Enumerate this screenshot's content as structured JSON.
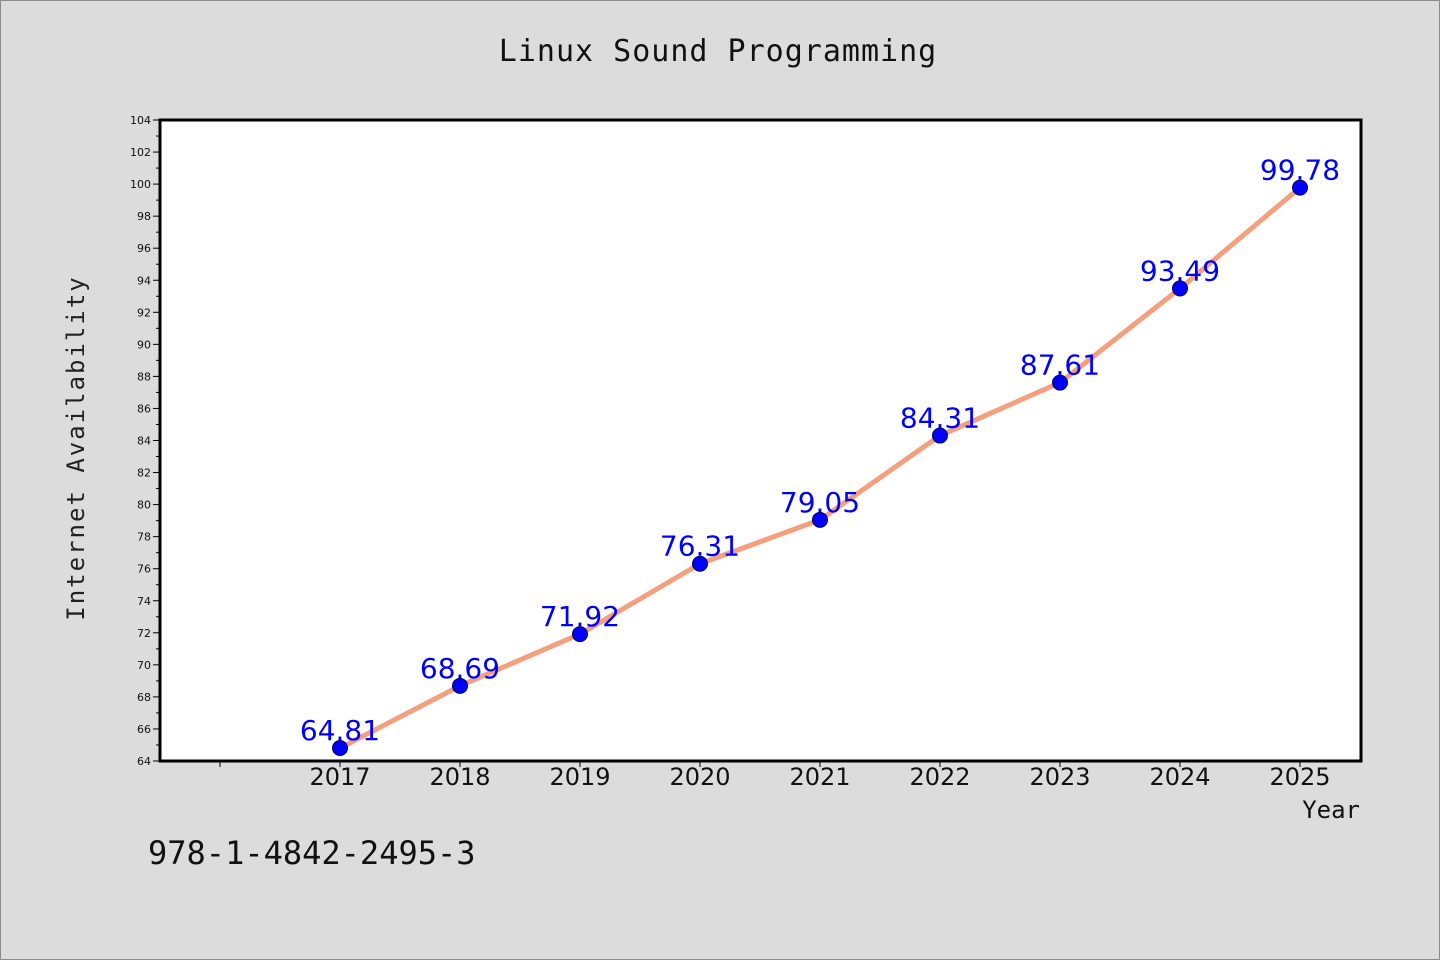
{
  "chart_data": {
    "type": "line",
    "title": "Linux Sound Programming",
    "xlabel": "Year",
    "ylabel": "Internet Availability",
    "categories": [
      "2017",
      "2018",
      "2019",
      "2020",
      "2021",
      "2022",
      "2023",
      "2024",
      "2025"
    ],
    "values": [
      64.81,
      68.69,
      71.92,
      76.31,
      79.05,
      84.31,
      87.61,
      93.49,
      99.78
    ],
    "data_labels": [
      "64.81",
      "68.69",
      "71.92",
      "76.31",
      "79.05",
      "84.31",
      "87.61",
      "93.49",
      "99.78"
    ],
    "ylim": [
      64,
      104
    ],
    "y_ticks": [
      "64",
      "66",
      "68",
      "70",
      "72",
      "74",
      "76",
      "78",
      "80",
      "82",
      "84",
      "86",
      "88",
      "90",
      "92",
      "94",
      "96",
      "98",
      "100",
      "102",
      "104"
    ],
    "grid": false,
    "legend": "none",
    "colors": {
      "line": "#f4a07f",
      "marker": "#0000ff",
      "label": "#0000ff",
      "plot_background": "#ffffff",
      "figure_background": "#dcdcdc"
    }
  },
  "footer": {
    "code": "978-1-4842-2495-3"
  }
}
